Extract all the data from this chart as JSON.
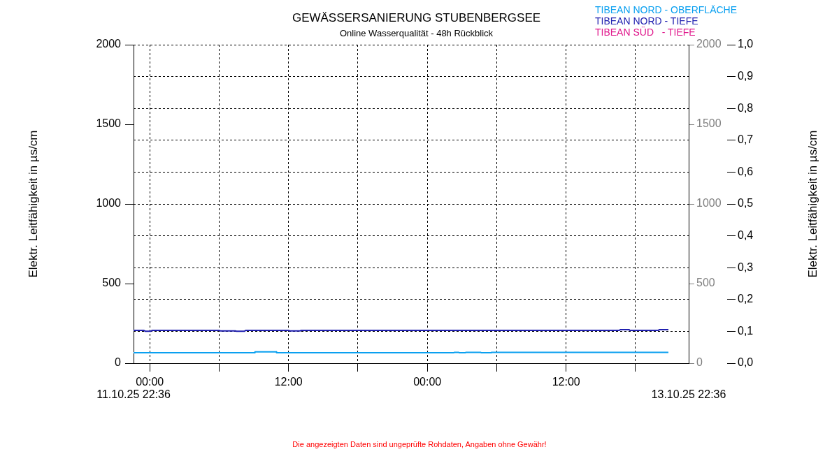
{
  "chart_data": {
    "type": "line",
    "title": "GEWÄSSERSANIERUNG STUBENBERGSEE",
    "subtitle": "Online Wasserqualität - 48h Rückblick",
    "y2label": "Elektr. Leitfähigkeit in µs/cm",
    "ylabel": "Elektr. Leitfähigkeit in µs/cm",
    "annotations": [
      "Die angezeigten Daten sind ungeprüfte Rohdaten, Angaben ohne Gewähr!",
      "11.10.25 22:36",
      "13.10.25 22:36"
    ],
    "xlim": [
      "--10-11T22:36",
      "--10-13T22:36"
    ],
    "xticks": [
      {
        "value": "--10-12T00:00",
        "label": "00:00"
      },
      {
        "value": "--10-12T06:00",
        "label": null
      },
      {
        "value": "--10-12T12:00",
        "label": "12:00"
      },
      {
        "value": "--10-12T18:00",
        "label": null
      },
      {
        "value": "--10-13T00:00",
        "label": "00:00"
      },
      {
        "value": "--10-13T06:00",
        "label": null
      },
      {
        "value": "--10-13T12:00",
        "label": "12:00"
      },
      {
        "value": "--10-13T18:00",
        "label": null
      }
    ],
    "ylim": [
      0,
      2000
    ],
    "yticks": [
      0,
      500,
      1000,
      1500,
      2000
    ],
    "y2lim": [
      0,
      1
    ],
    "y2ticks": [
      {
        "value": 0,
        "label": "0,0"
      },
      {
        "value": 0.1,
        "label": "0,1"
      },
      {
        "value": 0.2,
        "label": "0,2"
      },
      {
        "value": 0.3,
        "label": "0,3"
      },
      {
        "value": 0.4,
        "label": "0,4"
      },
      {
        "value": 0.5,
        "label": "0,5"
      },
      {
        "value": 0.6,
        "label": "0,6"
      },
      {
        "value": 0.7,
        "label": "0,7"
      },
      {
        "value": 0.8,
        "label": "0,8"
      },
      {
        "value": 0.9,
        "label": "0,9"
      },
      {
        "value": 1,
        "label": "1,0"
      }
    ],
    "y3lim": [
      0,
      2000
    ],
    "y3ticks": [
      0,
      500,
      1000,
      1500,
      2000
    ],
    "grid": true,
    "legend": "top right",
    "marker": "none",
    "line_style": "solid",
    "series": [
      {
        "name": "TIBEAN NORD - OBERFLÄCHE",
        "color": "#0aa0f0",
        "x": [
          "--10-11T22:36",
          "--10-12T09:05",
          "--10-12T09:06",
          "--10-12T10:57",
          "--10-12T10:58",
          "--10-13T02:18",
          "--10-13T02:21",
          "--10-13T02:42",
          "--10-13T02:45",
          "--10-13T03:18",
          "--10-13T03:21",
          "--10-13T04:36",
          "--10-13T04:39",
          "--10-13T05:30",
          "--10-13T05:33",
          "--10-13T20:51"
        ],
        "values": [
          66,
          66,
          71,
          71,
          66,
          66,
          68,
          68,
          66,
          66,
          68,
          68,
          66,
          66,
          68,
          68
        ]
      },
      {
        "name": "TIBEAN NORD - TIEFE",
        "color": "#2020b0",
        "x": [
          "--10-11T22:36",
          "--10-11T23:30",
          "--10-11T23:36",
          "--10-12T00:06",
          "--10-12T00:12",
          "--10-12T06:00",
          "--10-12T06:06",
          "--10-12T07:24",
          "--10-12T07:30",
          "--10-12T08:12",
          "--10-12T08:18",
          "--10-12T12:00",
          "--10-12T12:06",
          "--10-12T13:00",
          "--10-12T13:06",
          "--10-13T16:36",
          "--10-13T16:42",
          "--10-13T17:27",
          "--10-13T17:30",
          "--10-13T20:00",
          "--10-13T20:03",
          "--10-13T20:51"
        ],
        "values": [
          206,
          206,
          201,
          201,
          206,
          206,
          203,
          203,
          201,
          201,
          206,
          206,
          203,
          203,
          206,
          206,
          211,
          211,
          206,
          206,
          211,
          211
        ]
      },
      {
        "name": "TIBEAN SÜD   - TIEFE",
        "color": "#e0188c"
      }
    ]
  }
}
